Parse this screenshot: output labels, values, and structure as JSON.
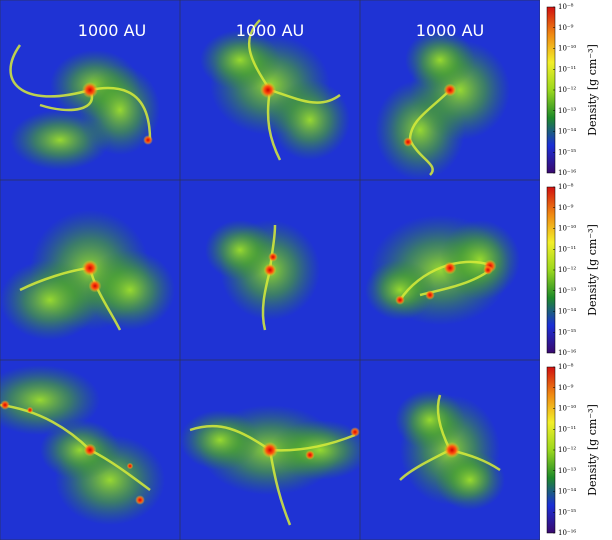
{
  "panels": [
    {
      "label": "1000 AU"
    },
    {
      "label": "1000 AU"
    },
    {
      "label": "1000 AU"
    }
  ],
  "colorbars": [
    {
      "label": "Density [g cm⁻³]",
      "scale": "log",
      "lim": [
        1e-16,
        1e-08
      ],
      "ticks": [
        {
          "value": 1e-08,
          "label": "10⁻⁸"
        },
        {
          "value": 1e-09,
          "label": "10⁻⁹"
        },
        {
          "value": 1e-10,
          "label": "10⁻¹⁰"
        },
        {
          "value": 1e-11,
          "label": "10⁻¹¹"
        },
        {
          "value": 1e-12,
          "label": "10⁻¹²"
        },
        {
          "value": 1e-13,
          "label": "10⁻¹³"
        },
        {
          "value": 1e-14,
          "label": "10⁻¹⁴"
        },
        {
          "value": 1e-15,
          "label": "10⁻¹⁵"
        },
        {
          "value": 1e-16,
          "label": "10⁻¹⁶"
        }
      ]
    },
    {
      "label": "Density [g cm⁻³]",
      "scale": "log",
      "lim": [
        1e-16,
        1e-08
      ],
      "ticks": [
        {
          "value": 1e-08,
          "label": "10⁻⁸"
        },
        {
          "value": 1e-09,
          "label": "10⁻⁹"
        },
        {
          "value": 1e-10,
          "label": "10⁻¹⁰"
        },
        {
          "value": 1e-11,
          "label": "10⁻¹¹"
        },
        {
          "value": 1e-12,
          "label": "10⁻¹²"
        },
        {
          "value": 1e-13,
          "label": "10⁻¹³"
        },
        {
          "value": 1e-14,
          "label": "10⁻¹⁴"
        },
        {
          "value": 1e-15,
          "label": "10⁻¹⁵"
        },
        {
          "value": 1e-16,
          "label": "10⁻¹⁶"
        }
      ]
    },
    {
      "label": "Density [g cm⁻³]",
      "scale": "log",
      "lim": [
        1e-16,
        1e-08
      ],
      "ticks": [
        {
          "value": 1e-08,
          "label": "10⁻⁸"
        },
        {
          "value": 1e-09,
          "label": "10⁻⁹"
        },
        {
          "value": 1e-10,
          "label": "10⁻¹⁰"
        },
        {
          "value": 1e-11,
          "label": "10⁻¹¹"
        },
        {
          "value": 1e-12,
          "label": "10⁻¹²"
        },
        {
          "value": 1e-13,
          "label": "10⁻¹³"
        },
        {
          "value": 1e-14,
          "label": "10⁻¹⁴"
        },
        {
          "value": 1e-15,
          "label": "10⁻¹⁵"
        },
        {
          "value": 1e-16,
          "label": "10⁻¹⁶"
        }
      ]
    }
  ],
  "colormap": [
    "#3a0a6e",
    "#1b2fd6",
    "#1e8a2a",
    "#9bd81e",
    "#f3ef2a",
    "#f08a12",
    "#d11010"
  ]
}
